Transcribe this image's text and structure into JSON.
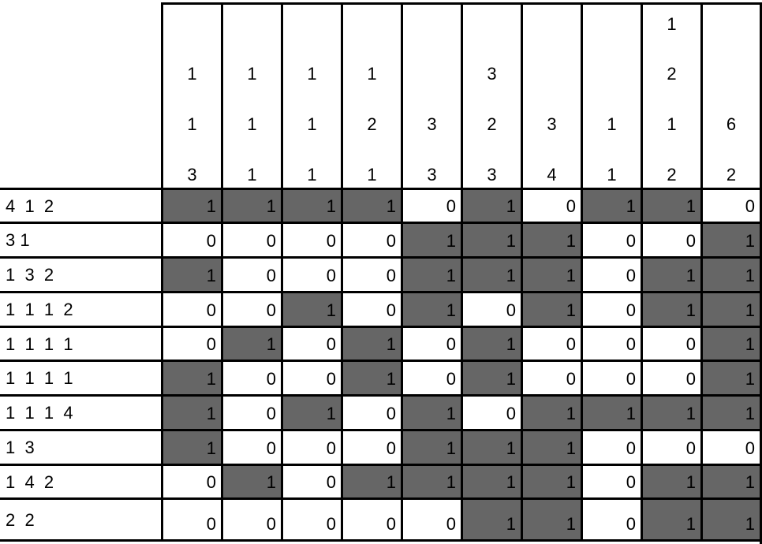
{
  "puzzle": {
    "column_clues": [
      [
        "1",
        "1",
        "3"
      ],
      [
        "1",
        "1",
        "1"
      ],
      [
        "1",
        "1",
        "1"
      ],
      [
        "1",
        "2",
        "1"
      ],
      [
        "3",
        "3"
      ],
      [
        "3",
        "2",
        "3"
      ],
      [
        "3",
        "4"
      ],
      [
        "1",
        "1"
      ],
      [
        "1",
        "2",
        "1",
        "2"
      ],
      [
        "6",
        "2"
      ]
    ],
    "row_clues": [
      "4  1  2",
      "3 1",
      "1  3  2",
      "1  1  1  2",
      "1  1  1  1",
      "1  1  1  1",
      "1  1  1  4",
      "1  3",
      "1  4  2",
      "2  2"
    ],
    "grid": [
      [
        1,
        1,
        1,
        1,
        0,
        1,
        0,
        1,
        1,
        0
      ],
      [
        0,
        0,
        0,
        0,
        1,
        1,
        1,
        0,
        0,
        1
      ],
      [
        1,
        0,
        0,
        0,
        1,
        1,
        1,
        0,
        1,
        1
      ],
      [
        0,
        0,
        1,
        0,
        1,
        0,
        1,
        0,
        1,
        1
      ],
      [
        0,
        1,
        0,
        1,
        0,
        1,
        0,
        0,
        0,
        1
      ],
      [
        1,
        0,
        0,
        1,
        0,
        1,
        0,
        0,
        0,
        1
      ],
      [
        1,
        0,
        1,
        0,
        1,
        0,
        1,
        1,
        1,
        1
      ],
      [
        1,
        0,
        0,
        0,
        1,
        1,
        1,
        0,
        0,
        0
      ],
      [
        0,
        1,
        0,
        1,
        1,
        1,
        1,
        0,
        1,
        1
      ],
      [
        0,
        0,
        0,
        0,
        0,
        1,
        1,
        0,
        1,
        1
      ]
    ],
    "colors": {
      "filled": "#666666",
      "empty": "#ffffff",
      "lines": "#000000"
    }
  }
}
